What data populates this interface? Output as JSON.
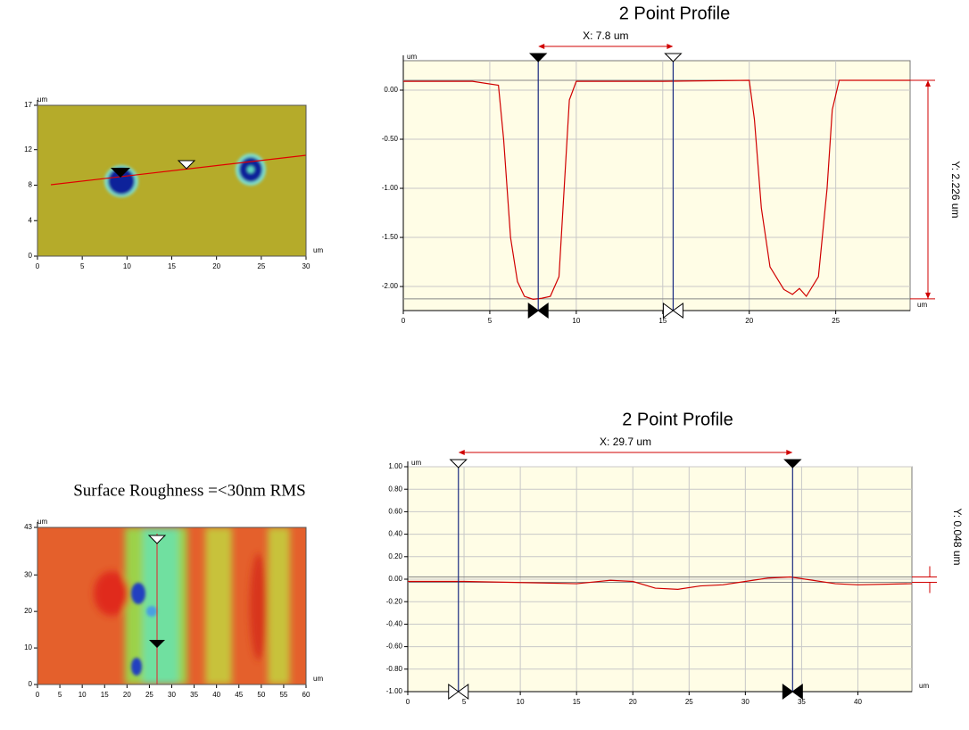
{
  "chart_data": [
    {
      "type": "image",
      "unit": "um",
      "xlim": [
        0,
        30
      ],
      "ylim": [
        0,
        17
      ],
      "xticks": [
        0,
        5,
        10,
        15,
        20,
        25,
        30
      ],
      "yticks": [
        0,
        4,
        8,
        12,
        17
      ],
      "palette": "olive"
    },
    {
      "type": "line",
      "title": "2 Point Profile",
      "unit": "um",
      "x_annotation": "X: 7.8 um",
      "y_annotation": "Y: 2.226 um",
      "xlim": [
        0,
        29.3
      ],
      "ylim": [
        -2.245,
        0.3
      ],
      "xticks": [
        0,
        5,
        10,
        15,
        20,
        25
      ],
      "yticks": [
        {
          "value": 0,
          "label": "0.00"
        },
        {
          "value": -0.5,
          "label": "-0.50"
        },
        {
          "value": -1,
          "label": "-1.00"
        },
        {
          "value": -1.5,
          "label": "-1.50"
        },
        {
          "value": -2,
          "label": "-2.00"
        }
      ],
      "x": [
        0,
        4,
        5.5,
        5.8,
        6.2,
        6.6,
        7,
        7.5,
        8,
        8.5,
        9,
        9.3,
        9.6,
        10,
        15,
        20,
        20.3,
        20.7,
        21.2,
        22,
        22.5,
        22.9,
        23.3,
        24,
        24.5,
        24.8,
        25.2,
        29.3
      ],
      "series": [
        {
          "color": "#d00000",
          "values": [
            0.09,
            0.09,
            0.05,
            -0.5,
            -1.5,
            -1.95,
            -2.1,
            -2.13,
            -2.12,
            -2.1,
            -1.9,
            -1.0,
            -0.1,
            0.09,
            0.09,
            0.1,
            -0.3,
            -1.2,
            -1.8,
            -2.03,
            -2.08,
            -2.02,
            -2.1,
            -1.9,
            -1.0,
            -0.2,
            0.1,
            0.1
          ]
        }
      ],
      "cursors_x": [
        7.8,
        15.6
      ],
      "cursors_y": [
        0.1,
        -2.126
      ]
    },
    {
      "type": "image",
      "title": "Surface Roughness =<30nm RMS",
      "unit": "um",
      "xlim": [
        0,
        60
      ],
      "ylim": [
        0,
        43
      ],
      "xticks": [
        0,
        5,
        10,
        15,
        20,
        25,
        30,
        35,
        40,
        45,
        50,
        55,
        60
      ],
      "yticks": [
        0,
        10,
        20,
        30,
        43
      ],
      "palette": "thermal"
    },
    {
      "type": "line",
      "title": "2 Point Profile",
      "unit": "um",
      "x_annotation": "X: 29.7 um",
      "y_annotation": "Y: 0.048 um",
      "xlim": [
        0,
        44.8
      ],
      "ylim": [
        -1,
        1
      ],
      "xticks": [
        0,
        5,
        10,
        15,
        20,
        25,
        30,
        35,
        40
      ],
      "yticks": [
        {
          "value": -1,
          "label": "-1.00"
        },
        {
          "value": -0.8,
          "label": "-0.80"
        },
        {
          "value": -0.6,
          "label": "-0.60"
        },
        {
          "value": -0.4,
          "label": "-0.40"
        },
        {
          "value": -0.2,
          "label": "-0.20"
        },
        {
          "value": 0,
          "label": "0.00"
        },
        {
          "value": 0.2,
          "label": "0.20"
        },
        {
          "value": 0.4,
          "label": "0.40"
        },
        {
          "value": 0.6,
          "label": "0.60"
        },
        {
          "value": 0.8,
          "label": "0.80"
        },
        {
          "value": 1,
          "label": "1.00"
        }
      ],
      "x": [
        0,
        5,
        10,
        15,
        18,
        20,
        22,
        24,
        26,
        28,
        30,
        32,
        34,
        36,
        38,
        40,
        44.8
      ],
      "series": [
        {
          "color": "#d00000",
          "values": [
            -0.02,
            -0.02,
            -0.03,
            -0.04,
            -0.01,
            -0.02,
            -0.08,
            -0.09,
            -0.06,
            -0.05,
            -0.02,
            0.01,
            0.02,
            -0.01,
            -0.04,
            -0.05,
            -0.04
          ]
        }
      ],
      "cursors_x": [
        4.5,
        34.2
      ],
      "cursors_y": [
        0.02,
        -0.028
      ]
    }
  ]
}
